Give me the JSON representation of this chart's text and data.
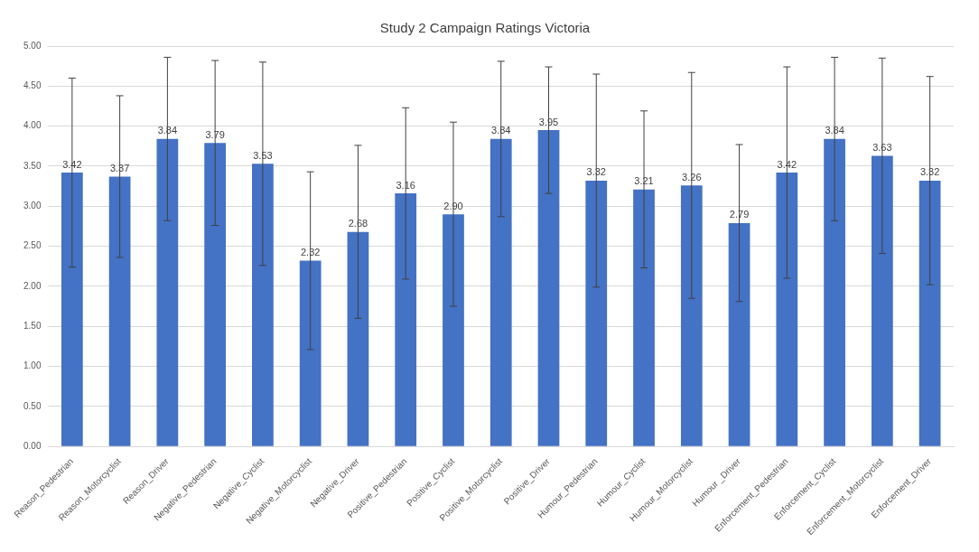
{
  "chart_data": {
    "type": "bar",
    "title": "Study 2 Campaign Ratings Victoria",
    "categories": [
      "Reason_Pedestrian",
      "Reason_Motorcyclist",
      "Reason_Driver",
      "Negative_Pedestrian",
      "Negative_Cyclist",
      "Negative_Motorcyclist",
      "Negative_Driver",
      "Positive_Pedestrian",
      "Positive_Cyclist",
      "Positive_Motorcyclist",
      "Positive_Driver",
      "Humour_Pedestrian",
      "Humour_Cyclist",
      "Humour_Motorcyclist",
      "Humour _Driver",
      "Enforcement_Pedestrian",
      "Enforcement_Cyclist",
      "Enforcement_Motorcyclist",
      "Enforcement_Driver"
    ],
    "values": [
      3.42,
      3.37,
      3.84,
      3.79,
      3.53,
      2.32,
      2.68,
      3.16,
      2.9,
      3.84,
      3.95,
      3.32,
      3.21,
      3.26,
      2.79,
      3.42,
      3.84,
      3.63,
      3.32
    ],
    "value_labels": [
      "3.42",
      "3.37",
      "3.84",
      "3.79",
      "3.53",
      "2.32",
      "2.68",
      "3.16",
      "2.90",
      "3.84",
      "3.95",
      "3.32",
      "3.21",
      "3.26",
      "2.79",
      "3.42",
      "3.84",
      "3.63",
      "3.32"
    ],
    "errors": [
      1.18,
      1.01,
      1.02,
      1.03,
      1.27,
      1.11,
      1.08,
      1.07,
      1.15,
      0.97,
      0.79,
      1.33,
      0.98,
      1.41,
      0.98,
      1.32,
      1.02,
      1.22,
      1.3
    ],
    "color": "#4472c4",
    "ylim": [
      0,
      5
    ],
    "yticks": [
      {
        "value": 0,
        "label": "0.00"
      },
      {
        "value": 0.5,
        "label": "0.50"
      },
      {
        "value": 1,
        "label": "1.00"
      },
      {
        "value": 1.5,
        "label": "1.50"
      },
      {
        "value": 2,
        "label": "2.00"
      },
      {
        "value": 2.5,
        "label": "2.50"
      },
      {
        "value": 3,
        "label": "3.00"
      },
      {
        "value": 3.5,
        "label": "3.50"
      },
      {
        "value": 4,
        "label": "4.00"
      },
      {
        "value": 4.5,
        "label": "4.50"
      },
      {
        "value": 5,
        "label": "5.00"
      }
    ],
    "grid": "y",
    "legend": false
  }
}
